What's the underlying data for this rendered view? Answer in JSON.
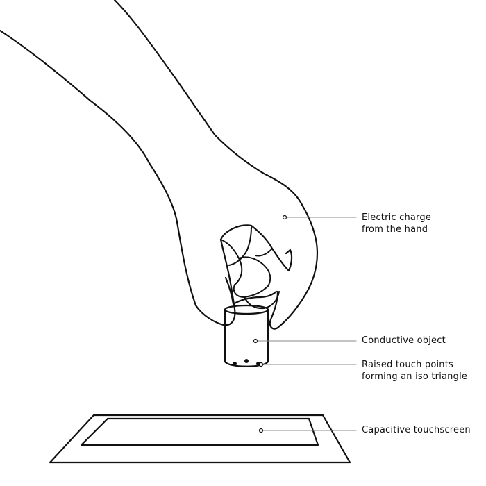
{
  "colors": {
    "stroke": "#111111",
    "leader": "#888888",
    "background": "#ffffff"
  },
  "callouts": {
    "hand": [
      "Electric charge",
      "from the hand"
    ],
    "object": [
      "Conductive object"
    ],
    "touch_points": [
      "Raised touch points",
      "forming an iso triangle"
    ],
    "screen": [
      "Capacitive touchscreen"
    ]
  }
}
